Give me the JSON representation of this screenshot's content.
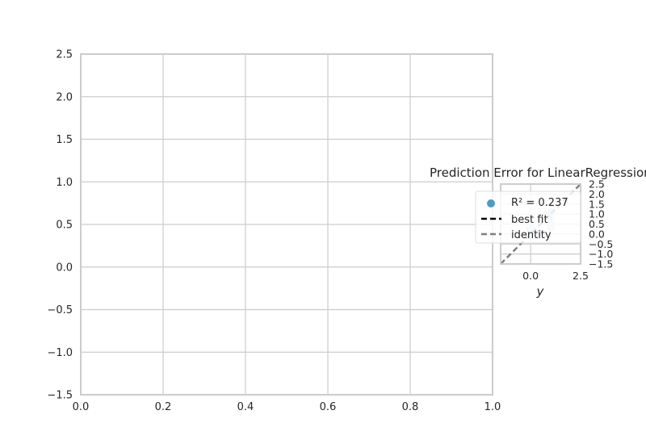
{
  "chart_data": [
    {
      "type": "scatter",
      "title": "",
      "xlabel": "",
      "ylabel": "",
      "xlim": [
        0.0,
        1.0
      ],
      "ylim": [
        -1.5,
        2.5
      ],
      "grid": true,
      "x_ticks": [
        "0.0",
        "0.2",
        "0.4",
        "0.6",
        "0.8",
        "1.0"
      ],
      "y_ticks": [
        "−1.5",
        "−1.0",
        "−0.5",
        "0.0",
        "0.5",
        "1.0",
        "1.5",
        "2.0",
        "2.5"
      ],
      "series": []
    },
    {
      "type": "scatter",
      "title": "Prediction Error for LinearRegression",
      "xlabel": "y",
      "ylabel": "",
      "xlim": [
        -1.5,
        2.5
      ],
      "ylim": [
        -1.5,
        2.5
      ],
      "grid": true,
      "legend_position": "left",
      "x_ticks": [
        "0.0",
        "2.5"
      ],
      "y_ticks": [
        "2.5",
        "2.0",
        "1.5",
        "1.0",
        "0.5",
        "0.0",
        "−0.5",
        "−1.0",
        "−1.5"
      ],
      "legend": {
        "r2_label": "R² = 0.237",
        "best_fit_label": "best fit",
        "identity_label": "identity"
      },
      "series": [
        {
          "name": "R² = 0.237",
          "color": "#4c9dc4",
          "points": [
            {
              "x": 0,
              "y": 0.25
            },
            {
              "x": 0,
              "y": 0.3
            },
            {
              "x": 0,
              "y": 0.35
            },
            {
              "x": 0,
              "y": 0.4
            },
            {
              "x": 0,
              "y": 0.45
            },
            {
              "x": 0,
              "y": 0.5
            },
            {
              "x": 0,
              "y": 0.55
            },
            {
              "x": 0,
              "y": 0.6
            },
            {
              "x": 1,
              "y": 0.32
            },
            {
              "x": 1,
              "y": 0.4
            },
            {
              "x": 1,
              "y": 0.5
            },
            {
              "x": 1,
              "y": 0.6
            },
            {
              "x": 1,
              "y": 0.7
            },
            {
              "x": 1,
              "y": 0.8
            },
            {
              "x": 1,
              "y": 0.9
            },
            {
              "x": 1,
              "y": 1.0
            },
            {
              "x": 1,
              "y": 1.1
            }
          ]
        }
      ],
      "best_fit": {
        "color": "#000000",
        "style": "dashed",
        "points": [
          [
            0,
            0.45
          ],
          [
            1,
            0.85
          ]
        ]
      },
      "identity": {
        "color": "#7f7f7f",
        "style": "dashed",
        "points": [
          [
            -1.5,
            -1.5
          ],
          [
            2.5,
            2.5
          ]
        ]
      }
    }
  ]
}
